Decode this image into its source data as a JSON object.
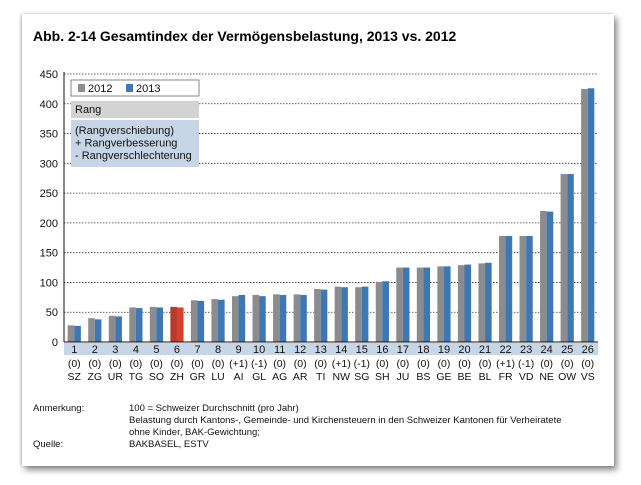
{
  "chart_data": {
    "type": "bar",
    "title": "Abb. 2-14    Gesamtindex der Vermögensbelastung, 2013 vs. 2012",
    "categories": [
      "SZ",
      "ZG",
      "UR",
      "TG",
      "SO",
      "ZH",
      "GR",
      "LU",
      "AI",
      "GL",
      "AG",
      "AR",
      "TI",
      "NW",
      "SG",
      "SH",
      "JU",
      "BS",
      "GE",
      "BE",
      "BL",
      "FR",
      "VD",
      "NE",
      "OW",
      "VS"
    ],
    "ranks": [
      "1",
      "2",
      "3",
      "4",
      "5",
      "6",
      "7",
      "8",
      "9",
      "10",
      "11",
      "12",
      "13",
      "14",
      "15",
      "16",
      "17",
      "18",
      "19",
      "20",
      "21",
      "22",
      "23",
      "24",
      "25",
      "26"
    ],
    "rank_changes": [
      "(0)",
      "(0)",
      "(0)",
      "(0)",
      "(0)",
      "(0)",
      "(0)",
      "(0)",
      "(+1)",
      "(-1)",
      "(0)",
      "(0)",
      "(0)",
      "(+1)",
      "(-1)",
      "(0)",
      "(0)",
      "(0)",
      "(0)",
      "(0)",
      "(0)",
      "(+1)",
      "(-1)",
      "(0)",
      "(0)",
      "(0)"
    ],
    "series": [
      {
        "name": "2012",
        "values": [
          28,
          40,
          44,
          58,
          59,
          59,
          70,
          72,
          77,
          79,
          80,
          80,
          89,
          93,
          92,
          101,
          125,
          125,
          127,
          129,
          132,
          178,
          178,
          220,
          282,
          425
        ]
      },
      {
        "name": "2013",
        "values": [
          27,
          38,
          43,
          57,
          58,
          58,
          69,
          71,
          79,
          77,
          79,
          79,
          88,
          92,
          93,
          102,
          125,
          125,
          127,
          130,
          133,
          178,
          178,
          219,
          282,
          426
        ]
      }
    ],
    "highlight_category": "ZH",
    "ylim": [
      0,
      450
    ],
    "yticks": [
      0,
      50,
      100,
      150,
      200,
      250,
      300,
      350,
      400,
      450
    ],
    "grid": true,
    "legend_position": "top-left",
    "colors": {
      "2012": "#8c8c8c",
      "2013": "#3d78b4",
      "highlight": "#d9402b",
      "rank_band": "#c7d6e6"
    },
    "legend_notes": {
      "heading": "Rang",
      "lines": [
        "(Rangverschiebung)",
        "+ Rangverbesserung",
        "- Rangverschlechterung"
      ]
    }
  },
  "notes": {
    "anmerkung_label": "Anmerkung:",
    "anmerkung_lines": [
      "100 = Schweizer Durchschnitt (pro Jahr)",
      "Belastung durch Kantons-, Gemeinde- und Kirchensteuern in den Schweizer Kantonen für Verheiratete",
      "ohne Kinder, BAK-Gewichtung;"
    ],
    "quelle_label": "Quelle:",
    "quelle_value": "BAKBASEL, ESTV"
  }
}
